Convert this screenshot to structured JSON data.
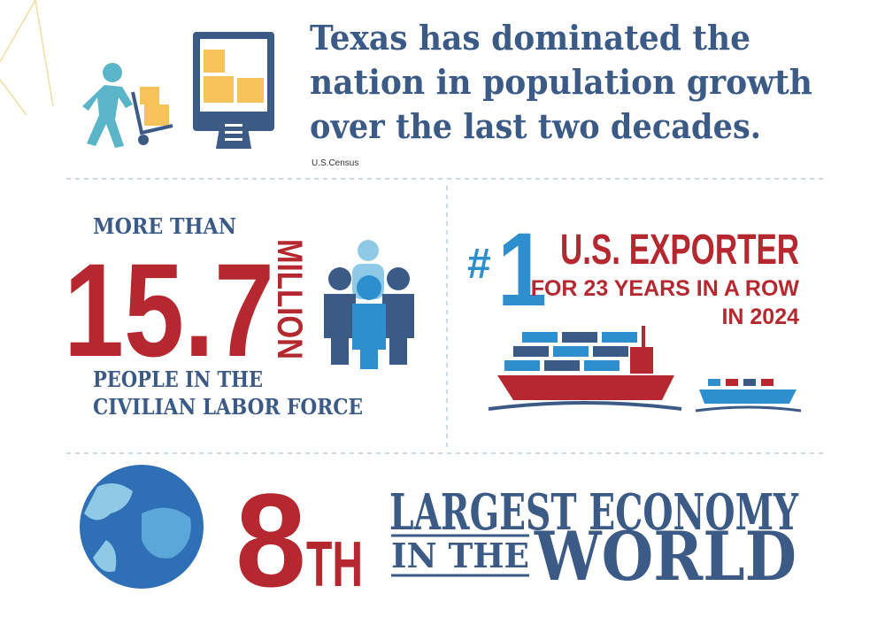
{
  "headline": {
    "lines": [
      "Texas has dominated the",
      "nation in population growth",
      "over the last two decades."
    ],
    "source": "U.S.Census"
  },
  "labor": {
    "prefix": "MORE THAN",
    "number": "15.7",
    "unit": "MILLION",
    "lines": [
      "PEOPLE IN THE",
      "CIVILIAN LABOR FORCE"
    ]
  },
  "exporter": {
    "hash": "#",
    "rank": "1",
    "title": "U.S. EXPORTER",
    "lines": [
      "FOR 23 YEARS IN A ROW",
      "IN 2024"
    ]
  },
  "economy": {
    "rank": "8",
    "suffix": "TH",
    "line1": "LARGEST ECONOMY",
    "line2a": "IN THE",
    "line2b": "WORLD"
  }
}
